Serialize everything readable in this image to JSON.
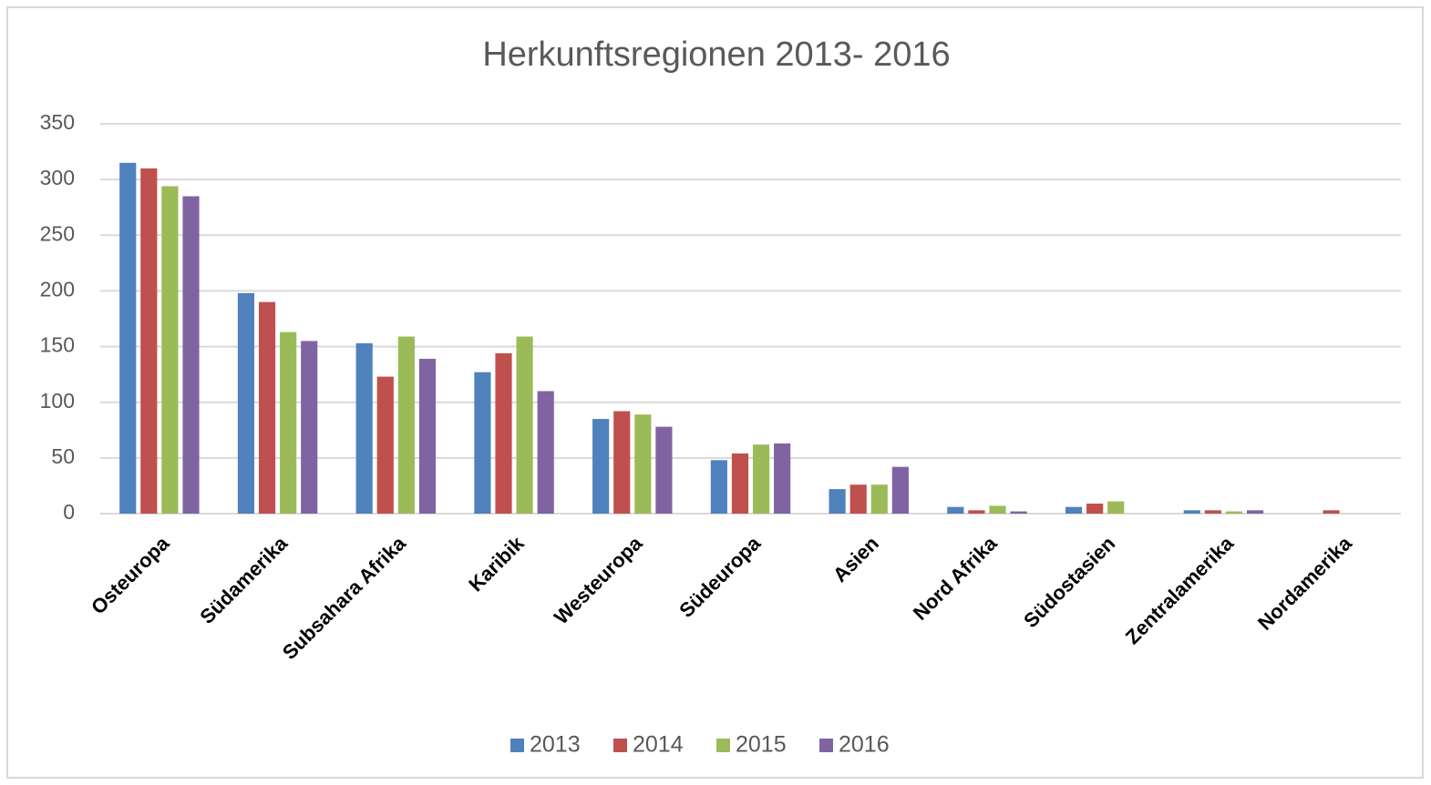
{
  "chart_data": {
    "type": "bar",
    "title": "Herkunftsregionen 2013- 2016",
    "categories": [
      "Osteuropa",
      "Südamerika",
      "Subsahara Afrika",
      "Karibik",
      "Westeuropa",
      "Südeuropa",
      "Asien",
      "Nord Afrika",
      "Südostasien",
      "Zentralamerika",
      "Nordamerika"
    ],
    "series": [
      {
        "name": "2013",
        "color": "#4f81bd",
        "values": [
          315,
          198,
          153,
          127,
          85,
          48,
          22,
          6,
          6,
          3,
          0
        ]
      },
      {
        "name": "2014",
        "color": "#c0504d",
        "values": [
          310,
          190,
          123,
          144,
          92,
          54,
          26,
          3,
          9,
          3,
          3
        ]
      },
      {
        "name": "2015",
        "color": "#9bbb59",
        "values": [
          294,
          163,
          159,
          159,
          89,
          62,
          26,
          7,
          11,
          2,
          0
        ]
      },
      {
        "name": "2016",
        "color": "#8064a2",
        "values": [
          285,
          155,
          139,
          110,
          78,
          63,
          42,
          2,
          0,
          3,
          0
        ]
      }
    ],
    "ylim": [
      0,
      350
    ],
    "yticks": [
      0,
      50,
      100,
      150,
      200,
      250,
      300,
      350
    ],
    "grid": true,
    "legend": "bottom"
  }
}
